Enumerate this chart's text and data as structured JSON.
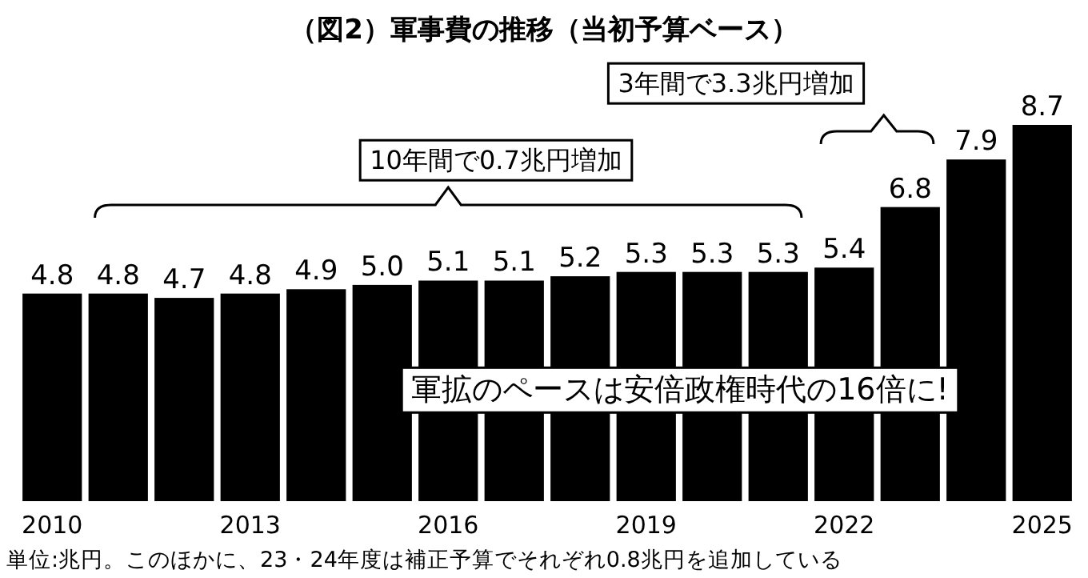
{
  "chart_data": {
    "type": "bar",
    "title": "（図2）軍事費の推移（当初予算ベース）",
    "categories": [
      "2010",
      null,
      null,
      "2013",
      null,
      null,
      "2016",
      null,
      null,
      "2019",
      null,
      null,
      "2022",
      null,
      null,
      "2025"
    ],
    "values": [
      4.8,
      4.8,
      4.7,
      4.8,
      4.9,
      5.0,
      5.1,
      5.1,
      5.2,
      5.3,
      5.3,
      5.3,
      5.4,
      6.8,
      7.9,
      8.7
    ],
    "color": "#000000",
    "value_labels": [
      "4.8",
      "4.8",
      "4.7",
      "4.8",
      "4.9",
      "5.0",
      "5.1",
      "5.1",
      "5.2",
      "5.3",
      "5.3",
      "5.3",
      "5.4",
      "6.8",
      "7.9",
      "8.7"
    ],
    "annotations": [
      "10年間で0.7兆円増加",
      "3年間で3.3兆円増加",
      "軍拡のペースは安倍政権時代の16倍に!",
      "単位:兆円。このほかに、23・24年度は補正予算でそれぞれ0.8兆円を追加している"
    ]
  }
}
